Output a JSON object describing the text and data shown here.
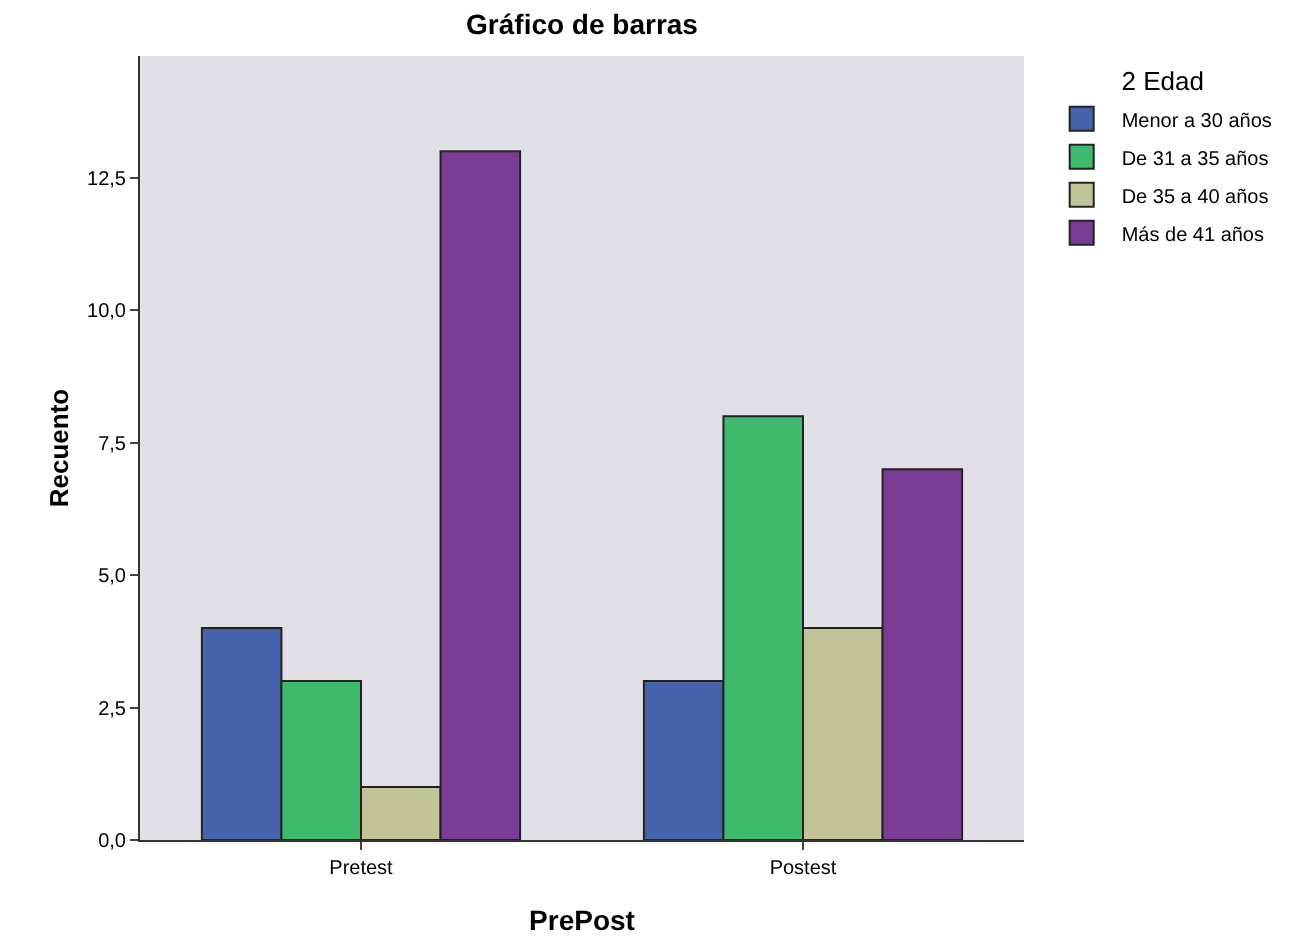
{
  "chart_data": {
    "type": "bar",
    "title": "Gráfico de barras",
    "xlabel": "PrePost",
    "ylabel": "Recuento",
    "legend_title": "2 Edad",
    "categories": [
      "Pretest",
      "Postest"
    ],
    "series": [
      {
        "name": "Menor a 30 años",
        "color": "#4664ae",
        "values": [
          4,
          3
        ]
      },
      {
        "name": "De 31 a 35 años",
        "color": "#3dba6c",
        "values": [
          3,
          8
        ]
      },
      {
        "name": "De 35 a 40 años",
        "color": "#c2c396",
        "values": [
          1,
          4
        ]
      },
      {
        "name": "Más de 41 años",
        "color": "#7b3c96",
        "values": [
          13,
          7
        ]
      }
    ],
    "ylim": [
      0,
      14.8
    ],
    "yticks": [
      {
        "value": 0,
        "label": "0,0"
      },
      {
        "value": 2.5,
        "label": "2,5"
      },
      {
        "value": 5,
        "label": "5,0"
      },
      {
        "value": 7.5,
        "label": "7,5"
      },
      {
        "value": 10,
        "label": "10,0"
      },
      {
        "value": 12.5,
        "label": "12,5"
      }
    ],
    "grid": false,
    "legend": "top right"
  }
}
